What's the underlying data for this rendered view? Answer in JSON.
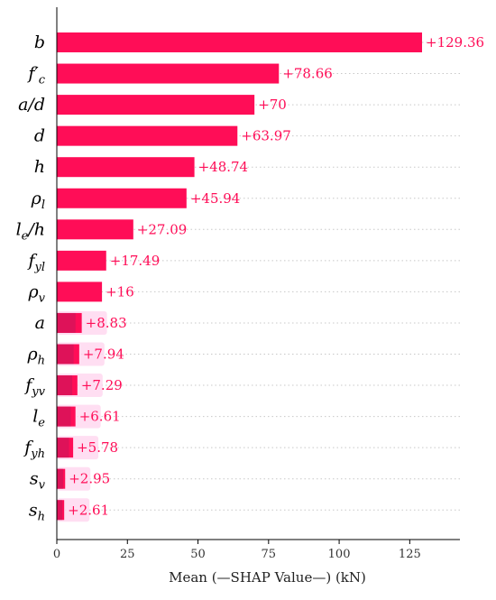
{
  "chart_data": {
    "type": "bar",
    "orientation": "horizontal",
    "xlabel": "Mean (—SHAP Value—) (kN)",
    "ylabel": "",
    "xlim": [
      0,
      145
    ],
    "xticks": [
      0,
      25,
      50,
      75,
      100,
      125
    ],
    "grid": "dotted horizontal row guides",
    "bar_color": "#ff0d57",
    "label_color": "#ff0d57",
    "features": [
      {
        "label": "b",
        "value": 129.36,
        "text": "+129.36"
      },
      {
        "label": "f′c",
        "value": 78.66,
        "text": "+78.66"
      },
      {
        "label": "a/d",
        "value": 70,
        "text": "+70"
      },
      {
        "label": "d",
        "value": 63.97,
        "text": "+63.97"
      },
      {
        "label": "h",
        "value": 48.74,
        "text": "+48.74"
      },
      {
        "label": "ρl",
        "value": 45.94,
        "text": "+45.94"
      },
      {
        "label": "le/h",
        "value": 27.09,
        "text": "+27.09"
      },
      {
        "label": "fyl",
        "value": 17.49,
        "text": "+17.49"
      },
      {
        "label": "ρv",
        "value": 16,
        "text": "+16"
      },
      {
        "label": "a",
        "value": 8.83,
        "text": "+8.83"
      },
      {
        "label": "ρh",
        "value": 7.94,
        "text": "+7.94"
      },
      {
        "label": "fyv",
        "value": 7.29,
        "text": "+7.29"
      },
      {
        "label": "le",
        "value": 6.61,
        "text": "+6.61"
      },
      {
        "label": "fyh",
        "value": 5.78,
        "text": "+5.78"
      },
      {
        "label": "sv",
        "value": 2.95,
        "text": "+2.95"
      },
      {
        "label": "sh",
        "value": 2.61,
        "text": "+2.61"
      }
    ]
  }
}
